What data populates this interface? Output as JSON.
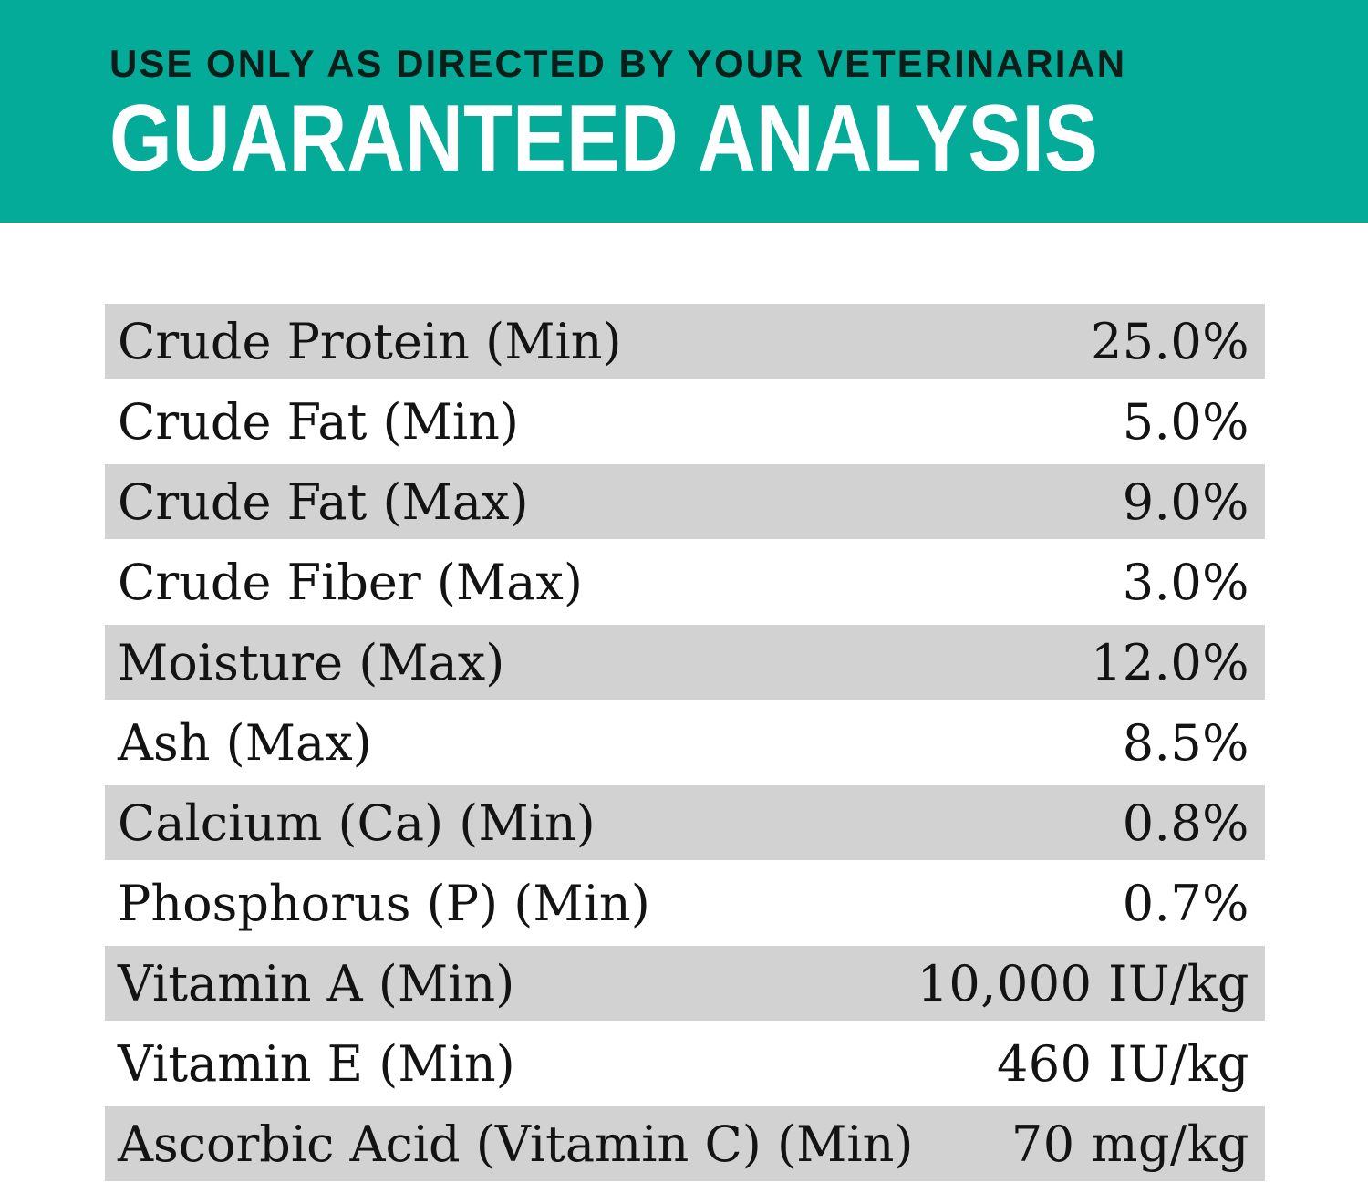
{
  "header": {
    "kicker": "USE ONLY AS DIRECTED BY YOUR VETERINARIAN",
    "title": "GUARANTEED ANALYSIS"
  },
  "table": {
    "rows": [
      {
        "label": "Crude Protein (Min)",
        "value": "25.0%"
      },
      {
        "label": "Crude Fat (Min)",
        "value": "5.0%"
      },
      {
        "label": "Crude Fat (Max)",
        "value": "9.0%"
      },
      {
        "label": "Crude Fiber (Max)",
        "value": "3.0%"
      },
      {
        "label": "Moisture (Max)",
        "value": "12.0%"
      },
      {
        "label": "Ash (Max)",
        "value": "8.5%"
      },
      {
        "label": "Calcium (Ca) (Min)",
        "value": "0.8%"
      },
      {
        "label": "Phosphorus (P) (Min)",
        "value": "0.7%"
      },
      {
        "label": "Vitamin A (Min)",
        "value": "10,000 IU/kg"
      },
      {
        "label": "Vitamin E (Min)",
        "value": "460 IU/kg"
      },
      {
        "label": "Ascorbic Acid (Vitamin C) (Min)",
        "value": "70 mg/kg"
      }
    ]
  },
  "colors": {
    "banner-bg": "#04ab98",
    "kicker-color": "#0b1e19",
    "title-color": "#ffffff",
    "stripe-color": "#d2d2d2",
    "text-color": "#131313",
    "page-bg": "#ffffff"
  }
}
